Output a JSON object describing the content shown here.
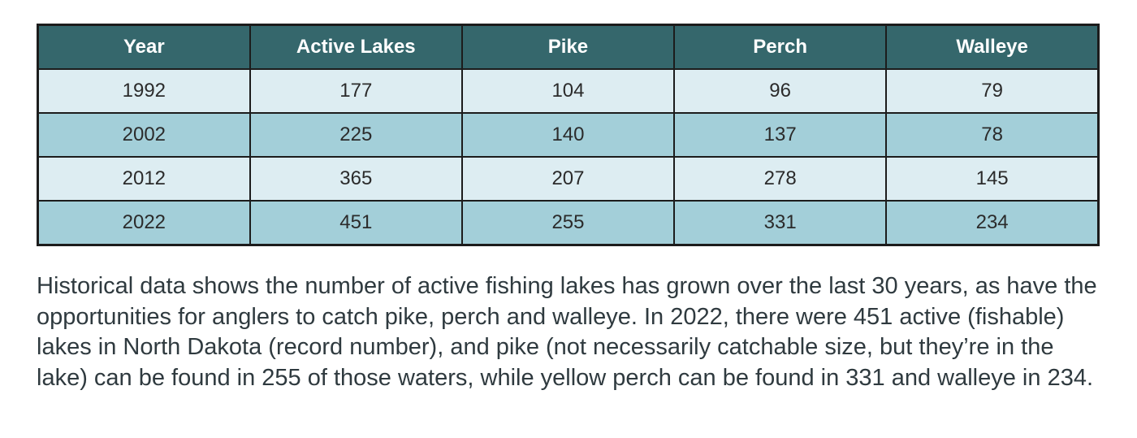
{
  "table": {
    "headers": [
      "Year",
      "Active Lakes",
      "Pike",
      "Perch",
      "Walleye"
    ],
    "rows": [
      [
        "1992",
        "177",
        "104",
        "96",
        "79"
      ],
      [
        "2002",
        "225",
        "140",
        "137",
        "78"
      ],
      [
        "2012",
        "365",
        "207",
        "278",
        "145"
      ],
      [
        "2022",
        "451",
        "255",
        "331",
        "234"
      ]
    ]
  },
  "caption": "Historical data shows the number of active fishing lakes has grown over the last 30 years, as have the opportunities for anglers to catch pike, perch and walleye. In 2022, there were 451 active (fishable) lakes in North Dakota (record number), and pike (not necessarily catchable size, but they’re in the lake) can be found in 255 of those waters, while yellow perch can be found in 331 and walleye in 234.",
  "colors": {
    "header_bg": "#35676c",
    "row_light": "#ddedf2",
    "row_dark": "#a3cfd9",
    "border": "#1c1c1c"
  }
}
